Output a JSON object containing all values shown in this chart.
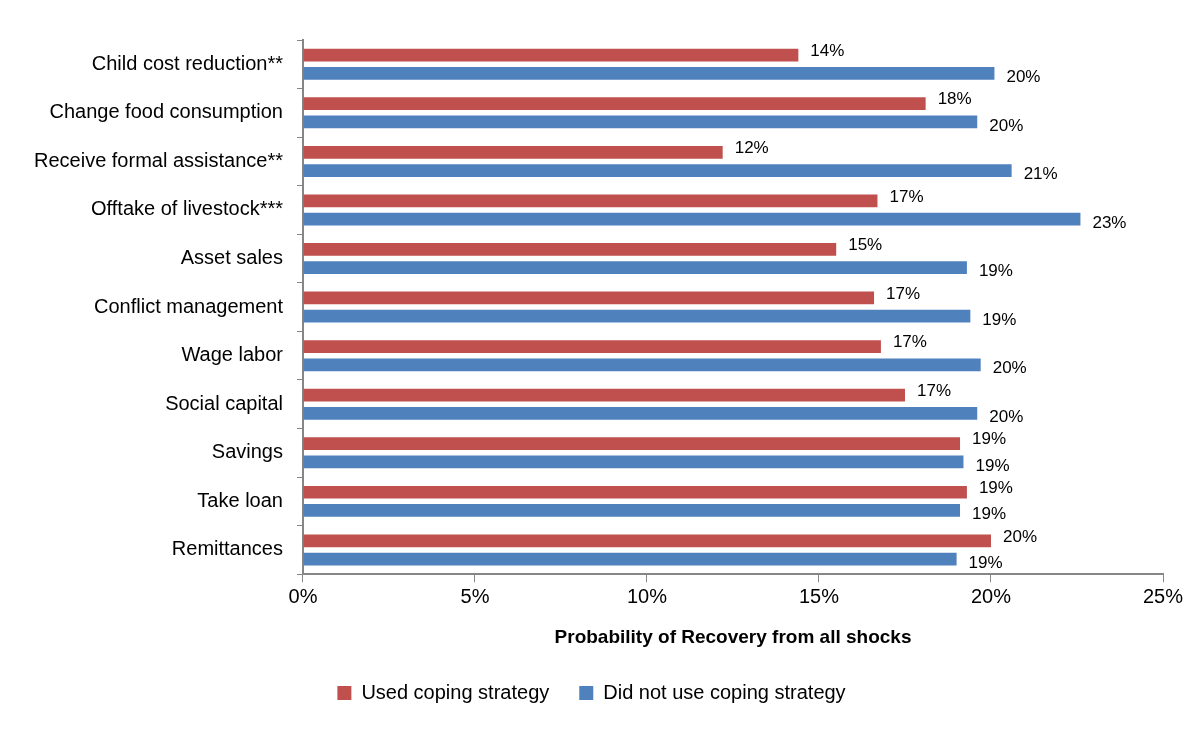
{
  "chart_data": {
    "type": "bar",
    "orientation": "horizontal",
    "xlabel": "Probability of Recovery from all shocks",
    "categories": [
      "Child cost reduction**",
      "Change food consumption",
      "Receive formal assistance**",
      "Offtake of livestock***",
      "Asset sales",
      "Conflict management",
      "Wage labor",
      "Social capital",
      "Savings",
      "Take loan",
      "Remittances"
    ],
    "series": [
      {
        "name": "Used coping strategy",
        "color": "#c0504d",
        "values": [
          14.4,
          18.1,
          12.2,
          16.7,
          15.5,
          16.6,
          16.8,
          17.5,
          19.1,
          19.3,
          20.0
        ],
        "value_labels": [
          "14%",
          "18%",
          "12%",
          "17%",
          "15%",
          "17%",
          "17%",
          "17%",
          "19%",
          "19%",
          "20%"
        ]
      },
      {
        "name": "Did not use coping strategy",
        "color": "#4f81bd",
        "values": [
          20.1,
          19.6,
          20.6,
          22.6,
          19.3,
          19.4,
          19.7,
          19.6,
          19.2,
          19.1,
          19.0
        ],
        "value_labels": [
          "20%",
          "20%",
          "21%",
          "23%",
          "19%",
          "19%",
          "20%",
          "20%",
          "19%",
          "19%",
          "19%"
        ]
      }
    ],
    "xlim": [
      0,
      25
    ],
    "xticks": [
      {
        "value": 0,
        "label": "0%"
      },
      {
        "value": 5,
        "label": "5%"
      },
      {
        "value": 10,
        "label": "10%"
      },
      {
        "value": 15,
        "label": "15%"
      },
      {
        "value": 20,
        "label": "20%"
      },
      {
        "value": 25,
        "label": "25%"
      }
    ],
    "grid": false,
    "legend": "bottom"
  }
}
